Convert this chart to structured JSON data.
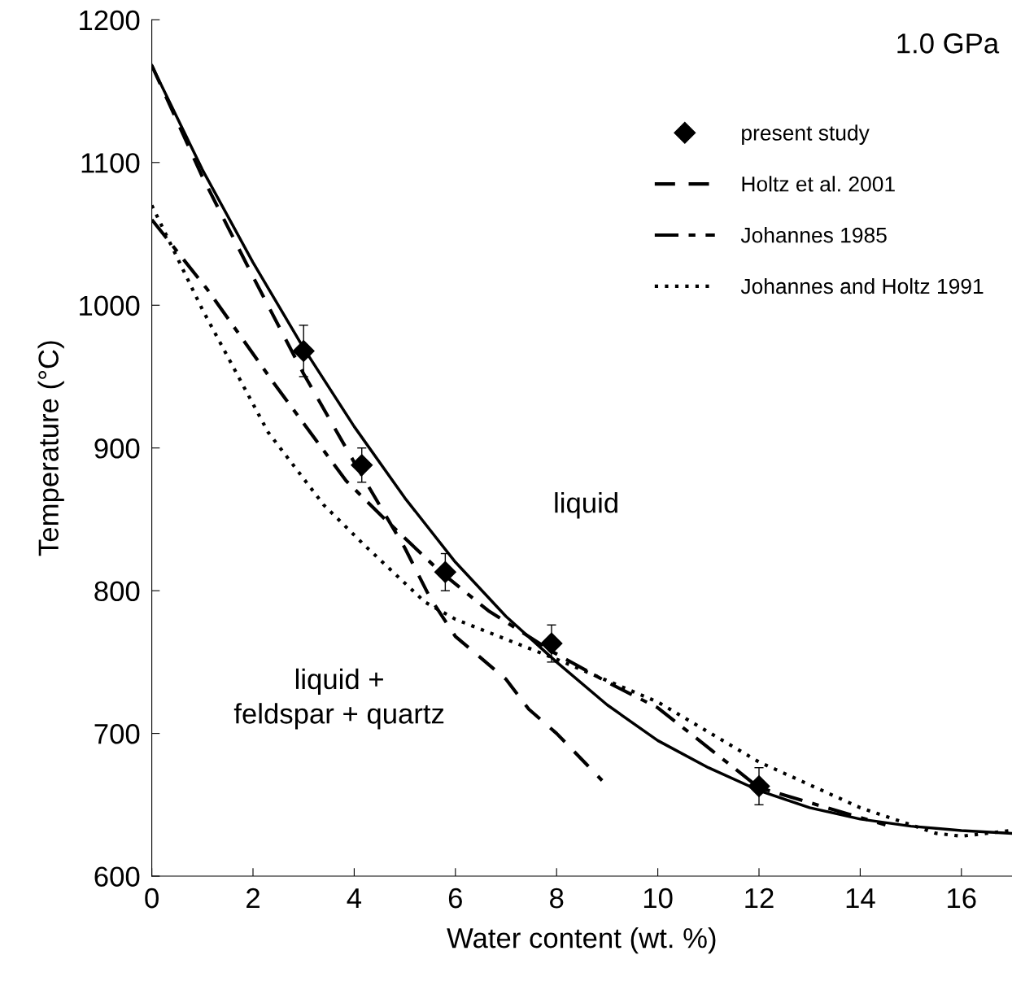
{
  "chart_data": {
    "type": "line",
    "xlabel": "Water content (wt. %)",
    "ylabel": "Temperature (°C)",
    "xlim": [
      0,
      17
    ],
    "ylim": [
      600,
      1200
    ],
    "xticks": [
      0,
      2,
      4,
      6,
      8,
      10,
      12,
      14,
      16
    ],
    "yticks": [
      600,
      700,
      800,
      900,
      1000,
      1100,
      1200
    ],
    "grid": false,
    "legend": "top right",
    "annotations": [
      "1.0 GPa",
      "liquid",
      "liquid +\nfeldspar + quartz"
    ],
    "series": [
      {
        "name": "present study",
        "type": "scatter",
        "marker": "diamond",
        "color": "#000000",
        "x": [
          3,
          4.15,
          5.8,
          7.9,
          12
        ],
        "values": [
          968,
          888,
          813,
          763,
          663
        ],
        "errors": [
          18,
          12,
          13,
          13,
          13
        ]
      },
      {
        "line_style": "solid",
        "marker": "none",
        "color": "#000000",
        "x": [
          0,
          1,
          2,
          3,
          4,
          5,
          6,
          7,
          8,
          9,
          10,
          11,
          12,
          13,
          14,
          15,
          16,
          17
        ],
        "values": [
          1168,
          1095,
          1030,
          970,
          915,
          865,
          820,
          782,
          750,
          720,
          695,
          676,
          660,
          648,
          640,
          635,
          632,
          630
        ]
      },
      {
        "name": "Holtz et al. 2001",
        "line_style": "dashed",
        "marker": "none",
        "color": "#000000",
        "x": [
          0,
          1,
          2,
          3,
          4,
          5,
          5.5,
          6,
          7,
          7.45,
          8,
          8.9
        ],
        "values": [
          1168,
          1090,
          1020,
          952,
          890,
          830,
          795,
          768,
          738,
          717,
          700,
          667
        ]
      },
      {
        "name": "Johannes 1985",
        "line_style": "dashdot",
        "marker": "none",
        "color": "#000000",
        "x": [
          0,
          1.1,
          2.4,
          3.84,
          4.64,
          5.68,
          6.65,
          7.93,
          9.05,
          10,
          12,
          14,
          14.5
        ],
        "values": [
          1060,
          1011,
          946,
          877,
          849,
          814,
          786,
          757,
          735,
          718,
          662,
          641,
          636
        ]
      },
      {
        "name": "Johannes and Holtz 1991",
        "line_style": "dotted",
        "marker": "none",
        "color": "#000000",
        "x": [
          0,
          1,
          2.3,
          3.4,
          4.2,
          5.4,
          6,
          8,
          10,
          12,
          14,
          15.5,
          16,
          17
        ],
        "values": [
          1070,
          997,
          911,
          860,
          832,
          792,
          780,
          752,
          722,
          680,
          648,
          630,
          628,
          632
        ]
      }
    ]
  }
}
